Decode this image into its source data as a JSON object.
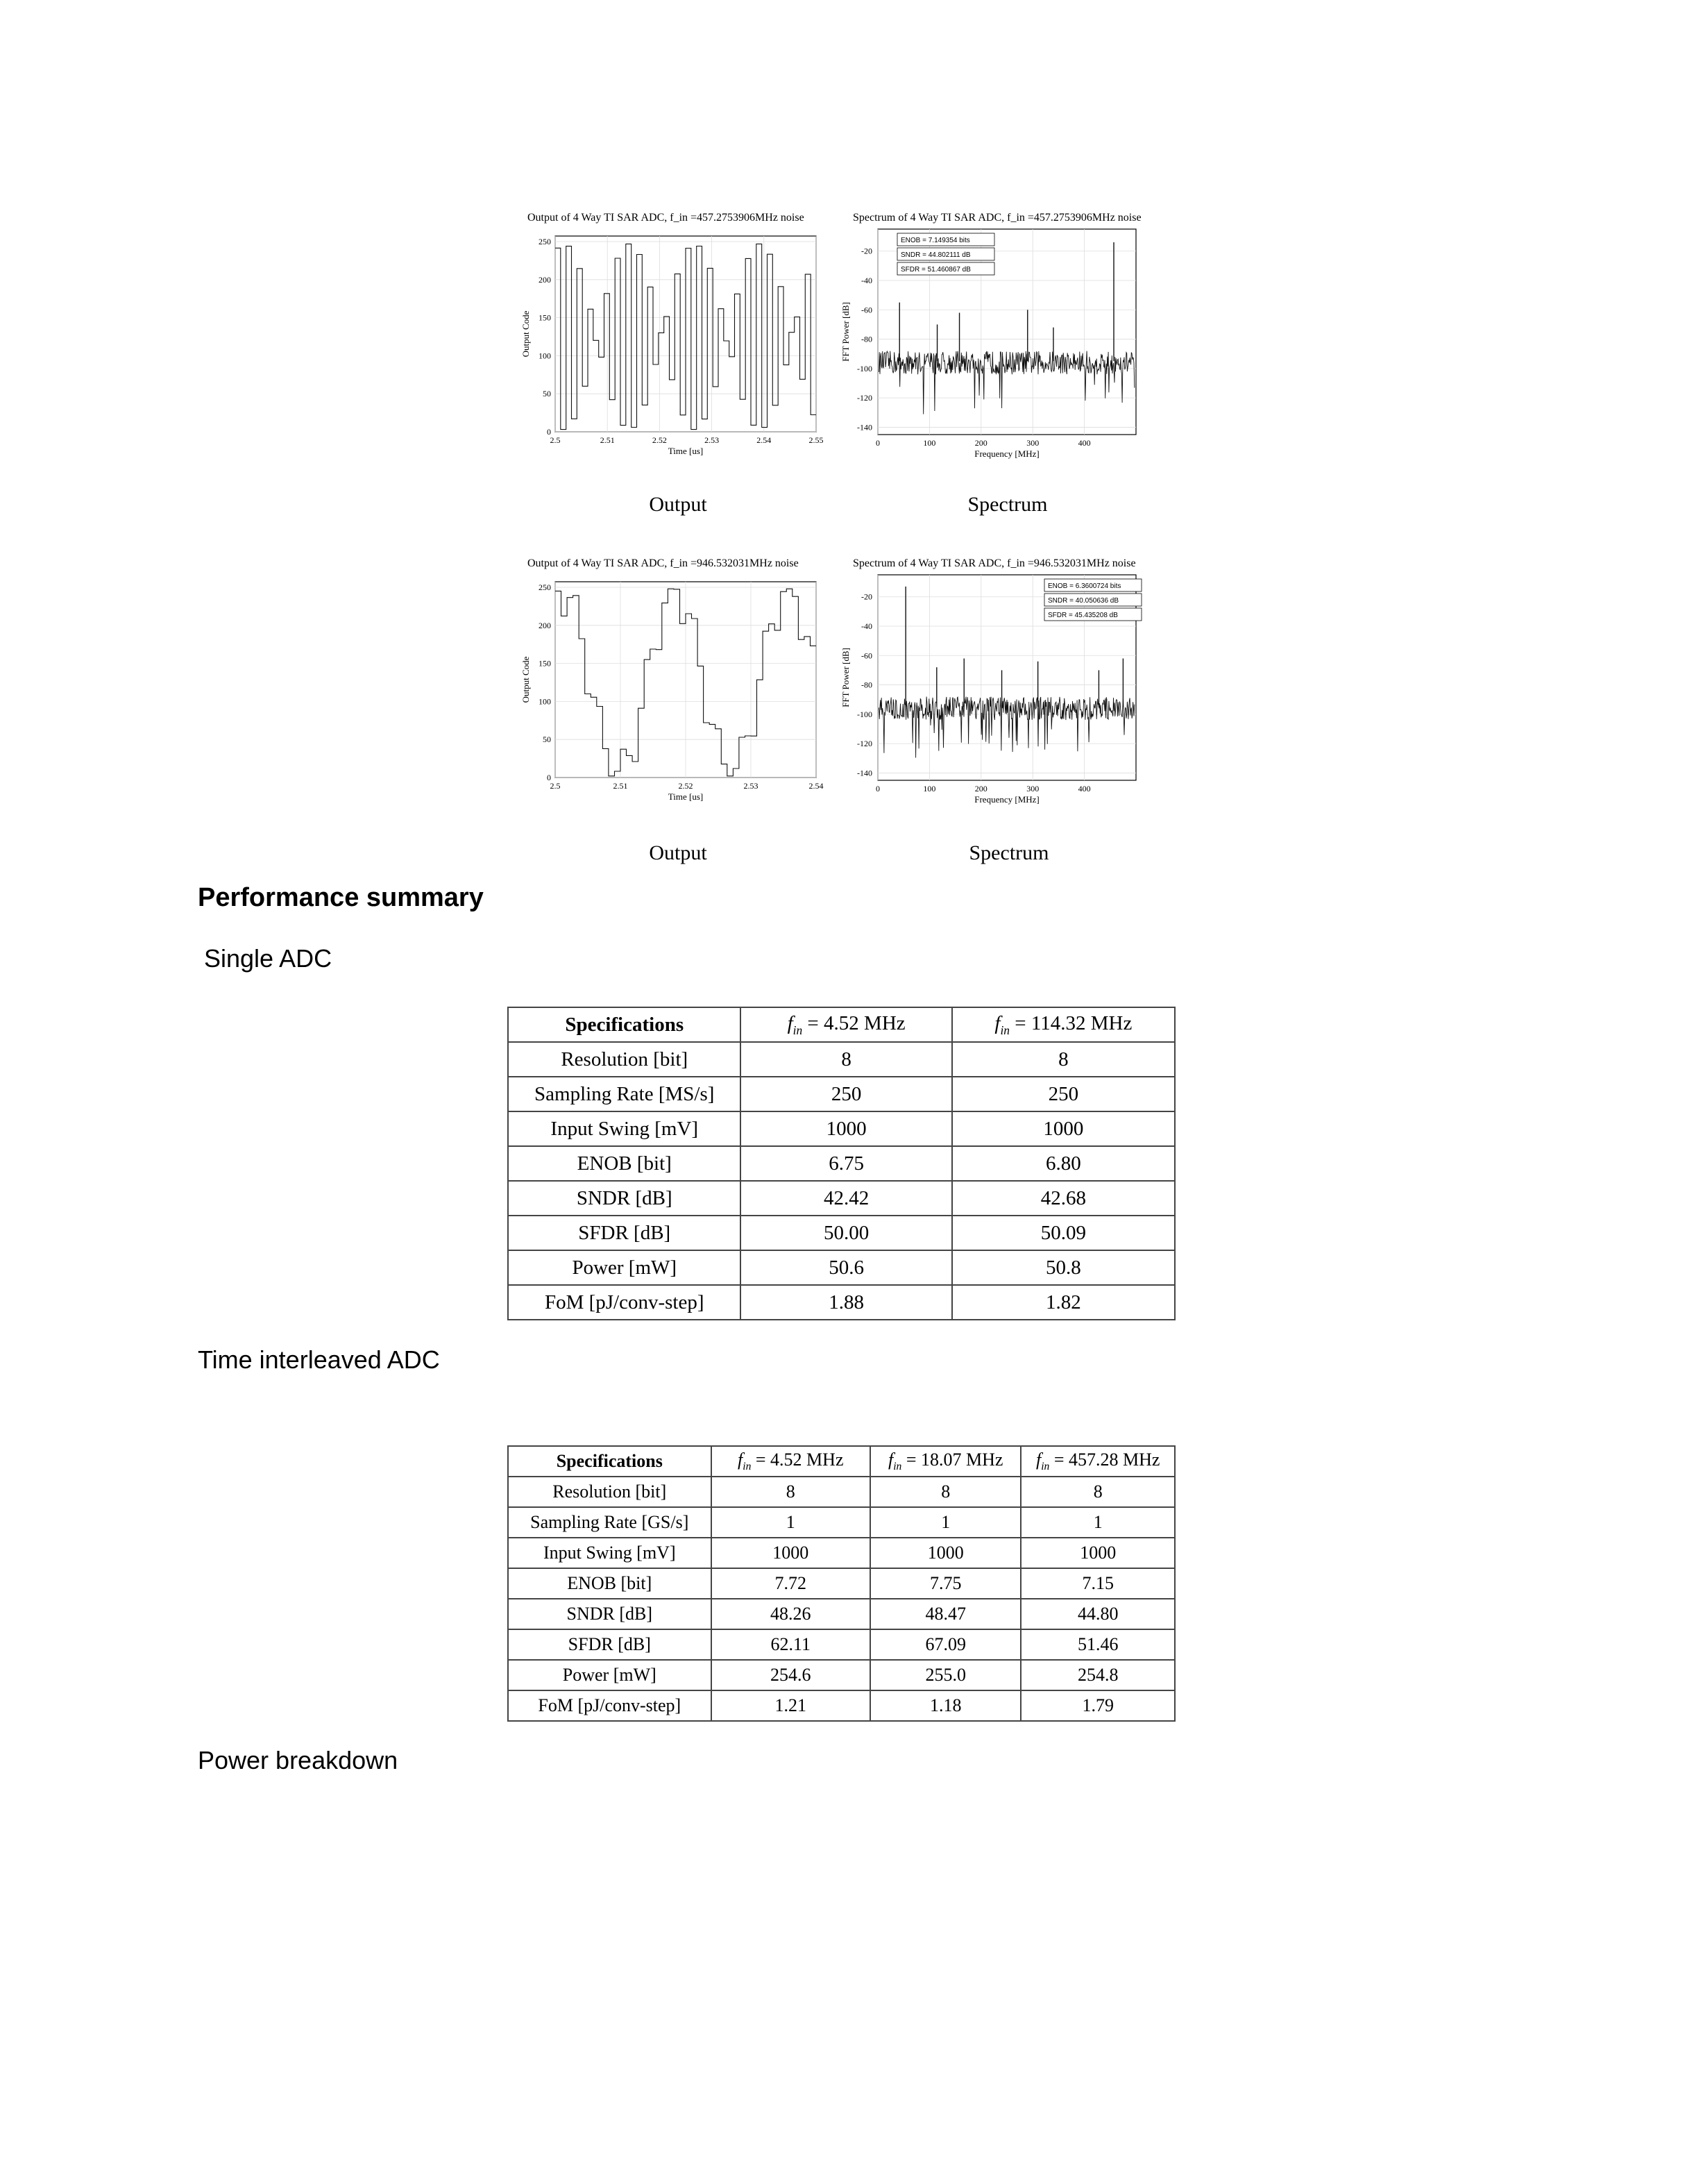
{
  "plots": {
    "row1": {
      "output": {
        "title": "Output of 4 Way TI SAR ADC, f_in =457.2753906MHz noise",
        "xlabel": "Time [us]",
        "ylabel": "Output Code",
        "xticks": [
          "2.5",
          "2.51",
          "2.52",
          "2.53",
          "2.54",
          "2.55"
        ],
        "yticks": [
          "0",
          "50",
          "100",
          "150",
          "200",
          "250"
        ],
        "caption": "Output"
      },
      "spectrum": {
        "title": "Spectrum of 4 Way TI SAR ADC, f_in =457.2753906MHz noise",
        "xlabel": "Frequency [MHz]",
        "ylabel": "FFT Power [dB]",
        "xticks": [
          "0",
          "100",
          "200",
          "300",
          "400"
        ],
        "yticks": [
          "-20",
          "-40",
          "-60",
          "-80",
          "-100",
          "-120",
          "-140"
        ],
        "legend": [
          "ENOB = 7.149354 bits",
          "SNDR = 44.802111 dB",
          "SFDR = 51.460867 dB"
        ],
        "caption": "Spectrum"
      }
    },
    "row2": {
      "output": {
        "title": "Output of 4 Way TI SAR ADC, f_in =946.532031MHz noise",
        "xlabel": "Time [us]",
        "ylabel": "Output Code",
        "xticks": [
          "2.5",
          "2.51",
          "2.52",
          "2.53",
          "2.54"
        ],
        "yticks": [
          "0",
          "50",
          "100",
          "150",
          "200",
          "250"
        ],
        "caption": "Output"
      },
      "spectrum": {
        "title": "Spectrum of 4 Way TI SAR ADC, f_in =946.532031MHz noise",
        "xlabel": "Frequency [MHz]",
        "ylabel": "FFT Power [dB]",
        "xticks": [
          "0",
          "100",
          "200",
          "300",
          "400"
        ],
        "yticks": [
          "-20",
          "-40",
          "-60",
          "-80",
          "-100",
          "-120",
          "-140"
        ],
        "legend": [
          "ENOB = 6.3600724 bits",
          "SNDR = 40.050636 dB",
          "SFDR = 45.435208 dB"
        ],
        "caption": "Spectrum"
      }
    }
  },
  "headings": {
    "performance": "Performance summary",
    "single": "Single ADC",
    "ti": "Time interleaved ADC",
    "power": "Power breakdown"
  },
  "table_single": {
    "header": {
      "specifications": "Specifications",
      "col1_value": "= 4.52 MHz",
      "col2_value": "= 114.32 MHz"
    },
    "rows": [
      {
        "label": "Resolution [bit]",
        "v1": "8",
        "v2": "8"
      },
      {
        "label": "Sampling Rate [MS/s]",
        "v1": "250",
        "v2": "250"
      },
      {
        "label": "Input Swing [mV]",
        "v1": "1000",
        "v2": "1000"
      },
      {
        "label": "ENOB [bit]",
        "v1": "6.75",
        "v2": "6.80"
      },
      {
        "label": "SNDR [dB]",
        "v1": "42.42",
        "v2": "42.68"
      },
      {
        "label": "SFDR [dB]",
        "v1": "50.00",
        "v2": "50.09"
      },
      {
        "label": "Power [mW]",
        "v1": "50.6",
        "v2": "50.8"
      },
      {
        "label": "FoM [pJ/conv-step]",
        "v1": "1.88",
        "v2": "1.82"
      }
    ]
  },
  "table_ti": {
    "header": {
      "specifications": "Specifications",
      "col1_value": "= 4.52 MHz",
      "col2_value": "= 18.07 MHz",
      "col3_value": "= 457.28 MHz"
    },
    "rows": [
      {
        "label": "Resolution [bit]",
        "v1": "8",
        "v2": "8",
        "v3": "8"
      },
      {
        "label": "Sampling Rate [GS/s]",
        "v1": "1",
        "v2": "1",
        "v3": "1"
      },
      {
        "label": "Input Swing [mV]",
        "v1": "1000",
        "v2": "1000",
        "v3": "1000"
      },
      {
        "label": "ENOB [bit]",
        "v1": "7.72",
        "v2": "7.75",
        "v3": "7.15"
      },
      {
        "label": "SNDR [dB]",
        "v1": "48.26",
        "v2": "48.47",
        "v3": "44.80"
      },
      {
        "label": "SFDR [dB]",
        "v1": "62.11",
        "v2": "67.09",
        "v3": "51.46"
      },
      {
        "label": "Power [mW]",
        "v1": "254.6",
        "v2": "255.0",
        "v3": "254.8"
      },
      {
        "label": "FoM [pJ/conv-step]",
        "v1": "1.21",
        "v2": "1.18",
        "v3": "1.79"
      }
    ]
  }
}
